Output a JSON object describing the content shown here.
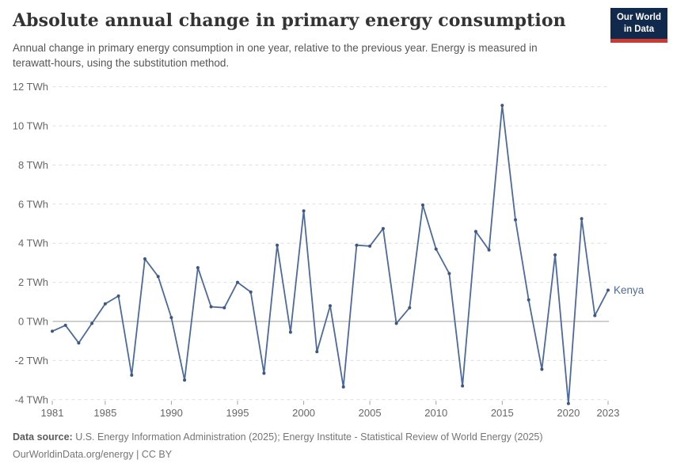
{
  "header": {
    "title": "Absolute annual change in primary energy consumption",
    "subtitle": "Annual change in primary energy consumption in one year, relative to the previous year. Energy is measured in terawatt-hours, using the substitution method.",
    "logo": {
      "line1": "Our World",
      "line2": "in Data"
    }
  },
  "footer": {
    "data_source_label": "Data source:",
    "data_source_text": "U.S. Energy Information Administration (2025); Energy Institute - Statistical Review of World Energy (2025)",
    "url": "OurWorldinData.org/energy",
    "separator": "|",
    "license": "CC BY"
  },
  "colors": {
    "line": "#4c6a9c",
    "marker": "#3d5781",
    "grid": "#dedede",
    "zero_line": "#9f9f9f",
    "tick_mark": "#a3a3a3",
    "axis_text": "#666666",
    "entity_label": "#4c6a9c"
  },
  "chart_data": {
    "type": "line",
    "title": "Absolute annual change in primary energy consumption",
    "unit": "TWh",
    "xlabel": "",
    "ylabel": "",
    "ylim": [
      -4,
      12
    ],
    "xlim": [
      1981,
      2023
    ],
    "y_ticks": [
      12,
      10,
      8,
      6,
      4,
      2,
      0,
      -2,
      -4
    ],
    "x_ticks": [
      1981,
      1985,
      1990,
      1995,
      2000,
      2005,
      2010,
      2015,
      2020,
      2023
    ],
    "grid": "horizontal-dashed",
    "legend": "line-end-label",
    "years": [
      1981,
      1982,
      1983,
      1984,
      1985,
      1986,
      1987,
      1988,
      1989,
      1990,
      1991,
      1992,
      1993,
      1994,
      1995,
      1996,
      1997,
      1998,
      1999,
      2000,
      2001,
      2002,
      2003,
      2004,
      2005,
      2006,
      2007,
      2008,
      2009,
      2010,
      2011,
      2012,
      2013,
      2014,
      2015,
      2016,
      2017,
      2018,
      2019,
      2020,
      2021,
      2022,
      2023
    ],
    "series": [
      {
        "name": "Kenya",
        "values": [
          -0.5,
          -0.2,
          -1.1,
          -0.1,
          0.9,
          1.3,
          -2.75,
          3.2,
          2.3,
          0.2,
          -3.0,
          2.75,
          0.75,
          0.7,
          2.0,
          1.5,
          -2.65,
          3.9,
          -0.55,
          5.65,
          -1.55,
          0.8,
          -3.35,
          3.9,
          3.85,
          4.75,
          -0.1,
          0.7,
          5.95,
          3.7,
          2.45,
          -3.3,
          4.6,
          3.65,
          11.05,
          5.2,
          1.1,
          -2.45,
          3.4,
          -4.2,
          5.25,
          0.3,
          1.6
        ]
      }
    ]
  }
}
